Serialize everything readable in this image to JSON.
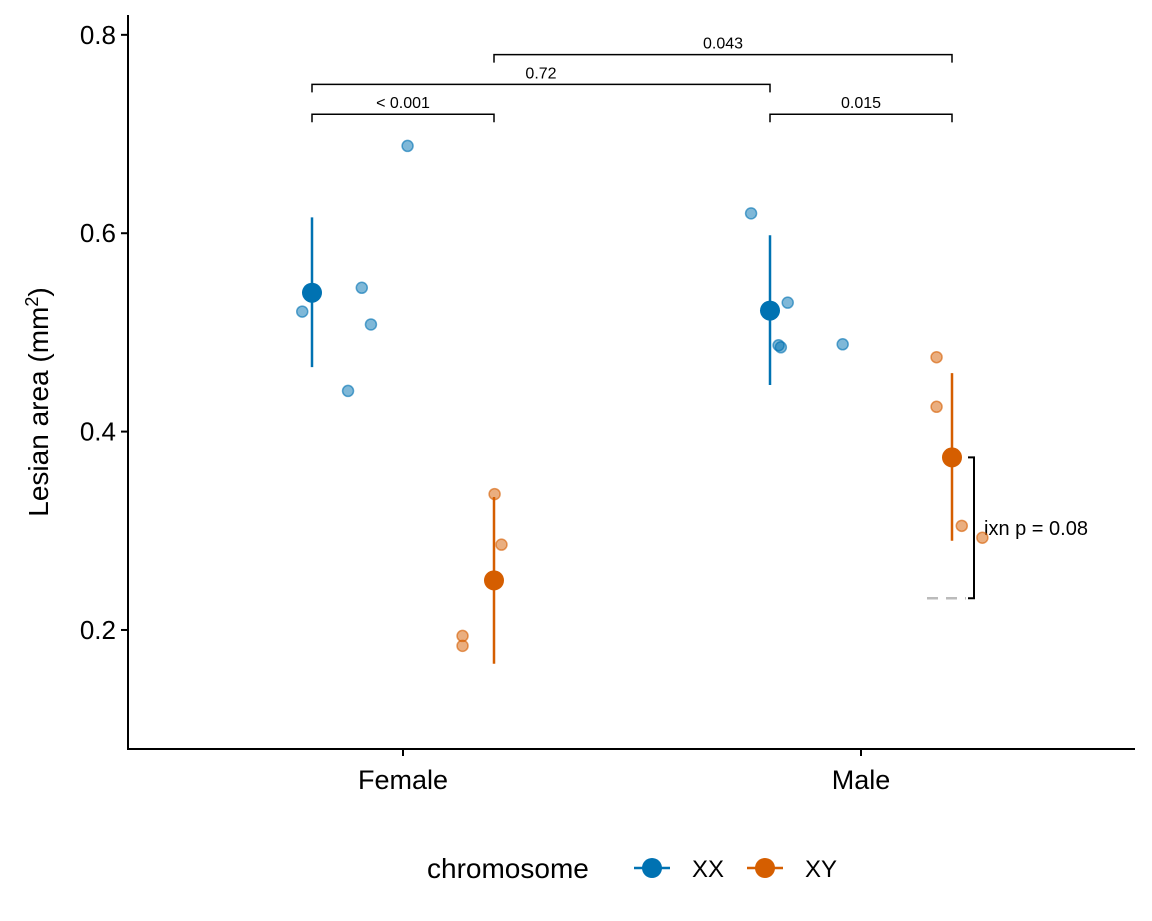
{
  "chart_data": {
    "type": "scatter",
    "ylabel": "Lesian area (mm",
    "ylabel_sup": "2",
    "ylabel_close": ")",
    "ylim": [
      0.08,
      0.82
    ],
    "yticks": [
      {
        "value": 0.2,
        "label": "0.2"
      },
      {
        "value": 0.4,
        "label": "0.4"
      },
      {
        "value": 0.6,
        "label": "0.6"
      },
      {
        "value": 0.8,
        "label": "0.8"
      }
    ],
    "categories": [
      "Female",
      "Male"
    ],
    "legend": {
      "title": "chromosome",
      "position": "bottom",
      "entries": [
        {
          "label": "XX",
          "color": "#0072B2"
        },
        {
          "label": "XY",
          "color": "#D55E00"
        }
      ]
    },
    "series": [
      {
        "name": "XX",
        "color": "#0072B2",
        "summary": [
          {
            "category": "Female",
            "mean": 0.54,
            "lower": 0.465,
            "upper": 0.616
          },
          {
            "category": "Male",
            "mean": 0.522,
            "lower": 0.447,
            "upper": 0.598
          }
        ],
        "points": [
          {
            "category": "Female",
            "offset": -0.22,
            "value": 0.521
          },
          {
            "category": "Female",
            "offset": -0.12,
            "value": 0.441
          },
          {
            "category": "Female",
            "offset": -0.09,
            "value": 0.545
          },
          {
            "category": "Female",
            "offset": -0.07,
            "value": 0.508
          },
          {
            "category": "Female",
            "offset": 0.01,
            "value": 0.688
          },
          {
            "category": "Male",
            "offset": -0.24,
            "value": 0.62
          },
          {
            "category": "Male",
            "offset": -0.18,
            "value": 0.487
          },
          {
            "category": "Male",
            "offset": -0.175,
            "value": 0.485
          },
          {
            "category": "Male",
            "offset": -0.16,
            "value": 0.53
          },
          {
            "category": "Male",
            "offset": -0.04,
            "value": 0.488
          }
        ]
      },
      {
        "name": "XY",
        "color": "#D55E00",
        "summary": [
          {
            "category": "Female",
            "mean": 0.25,
            "lower": 0.166,
            "upper": 0.334
          },
          {
            "category": "Male",
            "mean": 0.374,
            "lower": 0.29,
            "upper": 0.459
          }
        ],
        "points": [
          {
            "category": "Female",
            "offset": 0.13,
            "value": 0.194
          },
          {
            "category": "Female",
            "offset": 0.13,
            "value": 0.184
          },
          {
            "category": "Female",
            "offset": 0.2,
            "value": 0.337
          },
          {
            "category": "Female",
            "offset": 0.215,
            "value": 0.286
          },
          {
            "category": "Male",
            "offset": 0.165,
            "value": 0.475
          },
          {
            "category": "Male",
            "offset": 0.165,
            "value": 0.425
          },
          {
            "category": "Male",
            "offset": 0.22,
            "value": 0.305
          },
          {
            "category": "Male",
            "offset": 0.265,
            "value": 0.293
          }
        ]
      }
    ],
    "comparisons": [
      {
        "from": {
          "category": "Female",
          "series": "XX"
        },
        "to": {
          "category": "Female",
          "series": "XY"
        },
        "y": 0.72,
        "label": "< 0.001"
      },
      {
        "from": {
          "category": "Male",
          "series": "XX"
        },
        "to": {
          "category": "Male",
          "series": "XY"
        },
        "y": 0.72,
        "label": "0.015"
      },
      {
        "from": {
          "category": "Female",
          "series": "XX"
        },
        "to": {
          "category": "Male",
          "series": "XX"
        },
        "y": 0.75,
        "label": "0.72"
      },
      {
        "from": {
          "category": "Female",
          "series": "XY"
        },
        "to": {
          "category": "Male",
          "series": "XY"
        },
        "y": 0.78,
        "label": "0.043"
      }
    ],
    "interaction": {
      "label": "ixn p = 0.08",
      "bracket_low": 0.232,
      "bracket_high": 0.374,
      "reference_value": 0.232,
      "reference_color": "#bbbbbb"
    }
  }
}
